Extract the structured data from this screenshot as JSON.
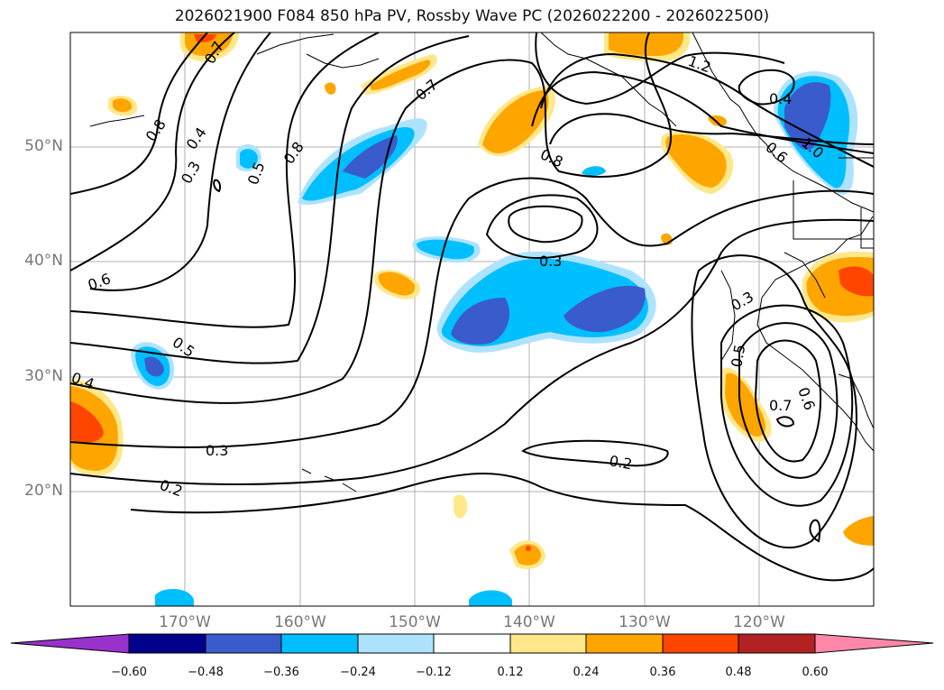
{
  "title": "2026021900 F084 850 hPa PV, Rossby Wave PC (2026022200 - 2026022500)",
  "axes": {
    "lat_labels": [
      "50°N",
      "40°N",
      "30°N",
      "20°N"
    ],
    "lon_labels": [
      "170°W",
      "160°W",
      "150°W",
      "140°W",
      "130°W",
      "120°W"
    ]
  },
  "contour_labels": [
    "0.7",
    "0.8",
    "0.4",
    "0.3",
    "0.5",
    "0.8",
    "0.7",
    "1.2",
    "0.4",
    "0.8",
    "1.0",
    "0.6",
    "0.3",
    "0.6",
    "0.5",
    "0.4",
    "0.3",
    "0.5",
    "0.3",
    "0.7",
    "0.6",
    "0.2",
    "0.2"
  ],
  "colorbar": {
    "ticks": [
      "−0.60",
      "−0.48",
      "−0.36",
      "−0.24",
      "−0.12",
      "0.12",
      "0.24",
      "0.36",
      "0.48",
      "0.60"
    ],
    "colors": [
      "#9932cc",
      "#00008b",
      "#3a5bcc",
      "#00bfff",
      "#aee3ff",
      "#ffffff",
      "#ffe88a",
      "#ffa500",
      "#ff4500",
      "#b22222",
      "#ff88aa"
    ]
  },
  "fill_colors": {
    "light_blue": "#aee3ff",
    "blue": "#00bfff",
    "dark_blue": "#3a5bcc",
    "light_yellow": "#ffe88a",
    "orange": "#ffa500",
    "red_orange": "#ff4500"
  }
}
